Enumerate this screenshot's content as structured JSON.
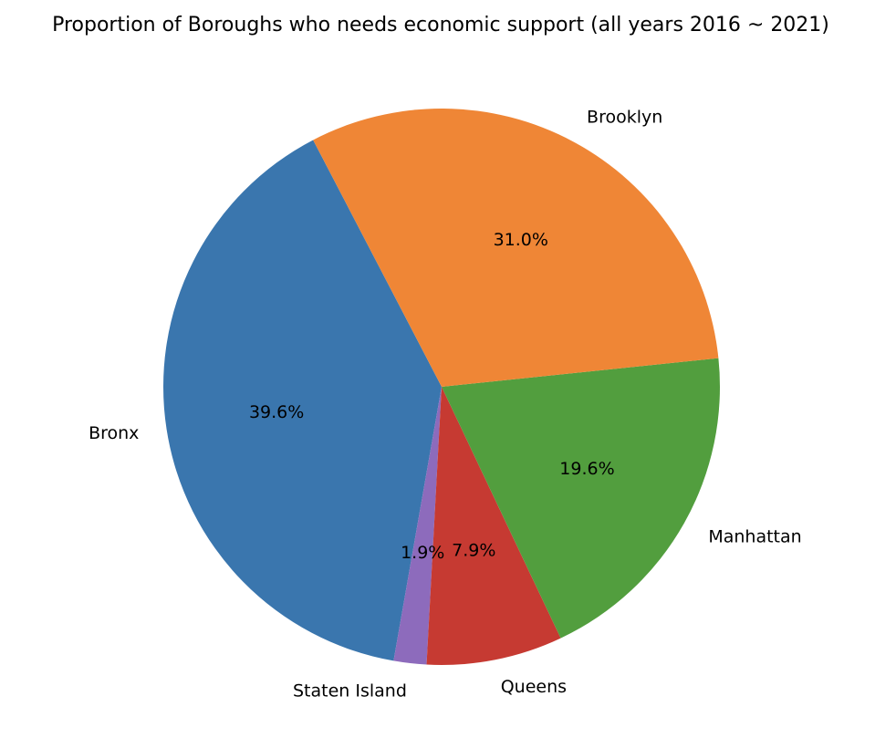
{
  "chart_data": {
    "type": "pie",
    "title": "Proportion of Boroughs who needs economic support (all years 2016 ~ 2021)",
    "start_angle_deg": 117.5,
    "direction": "counterclockwise",
    "slices": [
      {
        "label": "Bronx",
        "value": 39.6,
        "pct_label": "39.6%",
        "color": "#3a76ae"
      },
      {
        "label": "Staten Island",
        "value": 1.9,
        "pct_label": "1.9%",
        "color": "#8d6bbc"
      },
      {
        "label": "Queens",
        "value": 7.9,
        "pct_label": "7.9%",
        "color": "#c63a32"
      },
      {
        "label": "Manhattan",
        "value": 19.6,
        "pct_label": "19.6%",
        "color": "#529e3e"
      },
      {
        "label": "Brooklyn",
        "value": 31.0,
        "pct_label": "31.0%",
        "color": "#ef8636"
      }
    ]
  }
}
